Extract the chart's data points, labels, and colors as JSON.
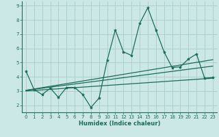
{
  "xlabel": "Humidex (Indice chaleur)",
  "bg_color": "#cce8e6",
  "grid_color": "#a8ccca",
  "line_color": "#1a6b5a",
  "xlim": [
    -0.5,
    23.5
  ],
  "ylim": [
    1.5,
    9.3
  ],
  "xticks": [
    0,
    1,
    2,
    3,
    4,
    5,
    6,
    7,
    8,
    9,
    10,
    11,
    12,
    13,
    14,
    15,
    16,
    17,
    18,
    19,
    20,
    21,
    22,
    23
  ],
  "yticks": [
    2,
    3,
    4,
    5,
    6,
    7,
    8,
    9
  ],
  "series_main": {
    "x": [
      0,
      1,
      2,
      3,
      4,
      5,
      6,
      7,
      8,
      9,
      10,
      11,
      12,
      13,
      14,
      15,
      16,
      17,
      18,
      19,
      20,
      21,
      22,
      23
    ],
    "y": [
      4.4,
      3.1,
      2.75,
      3.2,
      2.55,
      3.25,
      3.25,
      2.75,
      1.85,
      2.5,
      5.15,
      7.3,
      5.75,
      5.5,
      7.75,
      8.85,
      7.3,
      5.75,
      4.65,
      4.7,
      5.25,
      5.6,
      3.9,
      3.95
    ]
  },
  "series_lines": [
    {
      "x": [
        0,
        23
      ],
      "y": [
        3.05,
        5.2
      ]
    },
    {
      "x": [
        0,
        23
      ],
      "y": [
        3.05,
        4.75
      ]
    },
    {
      "x": [
        0,
        23
      ],
      "y": [
        3.0,
        3.9
      ]
    }
  ]
}
